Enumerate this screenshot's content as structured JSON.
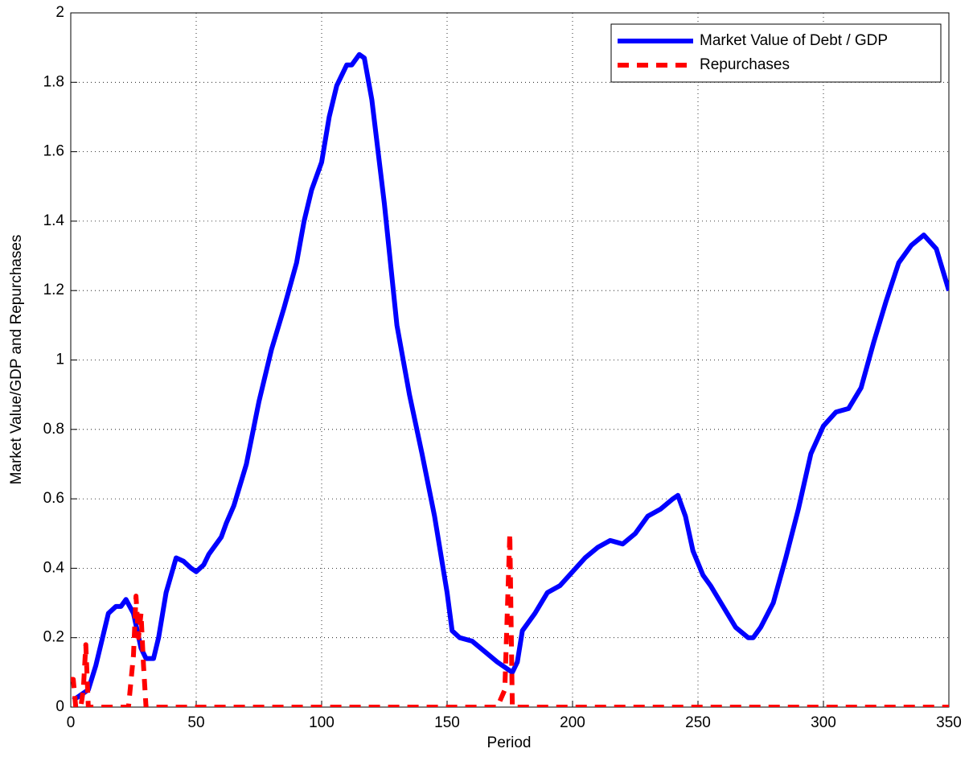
{
  "chart_data": {
    "type": "line",
    "xlabel": "Period",
    "ylabel": "Market Value/GDP and Repurchases",
    "xlim": [
      0,
      350
    ],
    "ylim": [
      0,
      2
    ],
    "xticks": [
      0,
      50,
      100,
      150,
      200,
      250,
      300,
      350
    ],
    "yticks": [
      0,
      0.2,
      0.4,
      0.6,
      0.8,
      1,
      1.2,
      1.4,
      1.6,
      1.8,
      2
    ],
    "grid": true,
    "legend": "upper right",
    "series": [
      {
        "name": "Market Value of Debt / GDP",
        "color": "#0000ff",
        "style": "solid",
        "x": [
          1,
          5,
          7,
          10,
          15,
          18,
          20,
          22,
          25,
          28,
          30,
          33,
          35,
          38,
          40,
          42,
          45,
          48,
          50,
          53,
          55,
          60,
          62,
          65,
          70,
          75,
          80,
          85,
          90,
          93,
          96,
          100,
          103,
          106,
          110,
          112,
          115,
          117,
          120,
          125,
          130,
          135,
          140,
          145,
          150,
          152,
          155,
          160,
          165,
          170,
          174,
          176,
          178,
          180,
          185,
          190,
          195,
          200,
          205,
          210,
          215,
          220,
          225,
          230,
          235,
          240,
          242,
          245,
          248,
          252,
          255,
          260,
          265,
          270,
          272,
          275,
          280,
          285,
          290,
          295,
          300,
          305,
          310,
          315,
          320,
          325,
          330,
          335,
          340,
          345,
          350
        ],
        "values": [
          0.02,
          0.04,
          0.05,
          0.12,
          0.27,
          0.29,
          0.29,
          0.31,
          0.27,
          0.17,
          0.14,
          0.14,
          0.2,
          0.33,
          0.38,
          0.43,
          0.42,
          0.4,
          0.39,
          0.41,
          0.44,
          0.49,
          0.53,
          0.58,
          0.7,
          0.88,
          1.03,
          1.15,
          1.28,
          1.4,
          1.49,
          1.57,
          1.7,
          1.79,
          1.85,
          1.85,
          1.88,
          1.87,
          1.75,
          1.45,
          1.1,
          0.9,
          0.73,
          0.55,
          0.33,
          0.22,
          0.2,
          0.19,
          0.16,
          0.13,
          0.11,
          0.1,
          0.13,
          0.22,
          0.27,
          0.33,
          0.35,
          0.39,
          0.43,
          0.46,
          0.48,
          0.47,
          0.5,
          0.55,
          0.57,
          0.6,
          0.61,
          0.55,
          0.45,
          0.38,
          0.35,
          0.29,
          0.23,
          0.2,
          0.2,
          0.23,
          0.3,
          0.43,
          0.57,
          0.73,
          0.81,
          0.85,
          0.86,
          0.92,
          1.05,
          1.17,
          1.28,
          1.33,
          1.36,
          1.32,
          1.2
        ]
      },
      {
        "name": "Repurchases",
        "color": "#ff0000",
        "style": "dashed",
        "x": [
          0,
          1,
          2,
          4,
          5,
          6,
          7,
          23,
          25,
          26,
          27,
          28,
          29,
          30,
          170,
          173,
          175,
          176,
          350
        ],
        "values": [
          0.08,
          0.08,
          0,
          0,
          0.05,
          0.18,
          0,
          0,
          0.15,
          0.32,
          0.2,
          0.27,
          0.12,
          0,
          0,
          0.05,
          0.5,
          0,
          0
        ]
      }
    ]
  }
}
